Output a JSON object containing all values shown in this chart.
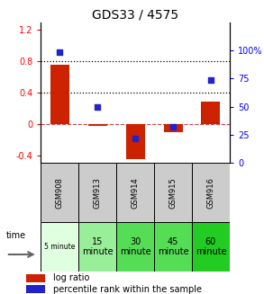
{
  "title": "GDS33 / 4575",
  "samples": [
    "GSM908",
    "GSM913",
    "GSM914",
    "GSM915",
    "GSM916"
  ],
  "time_labels": [
    "5 minute",
    "15\nminute",
    "30\nminute",
    "45\nminute",
    "60\nminute"
  ],
  "time_colors": [
    "#e0ffe0",
    "#99ee99",
    "#55dd55",
    "#55dd55",
    "#22cc22"
  ],
  "log_ratios": [
    0.75,
    -0.02,
    -0.45,
    -0.1,
    0.28
  ],
  "percentile_ranks": [
    98,
    50,
    22,
    32,
    74
  ],
  "bar_color": "#cc2200",
  "dot_color": "#2222cc",
  "ylim_left": [
    -0.5,
    1.3
  ],
  "ylim_right": [
    0,
    125
  ],
  "yticks_left": [
    -0.4,
    0.0,
    0.4,
    0.8,
    1.2
  ],
  "yticks_right": [
    0,
    25,
    50,
    75,
    100
  ],
  "hlines_dotted": [
    0.4,
    0.8
  ],
  "hline_dashed": 0.0,
  "table_row1_color": "#cccccc",
  "legend_bar_color": "#cc2200",
  "legend_dot_color": "#2222cc"
}
